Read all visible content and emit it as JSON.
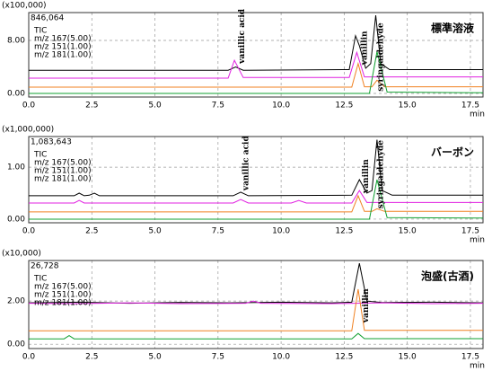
{
  "chart_data": [
    {
      "type": "line",
      "scale_label": "(x100,000)",
      "max_label": "846,064",
      "sample": "標準溶液",
      "x_label": "min",
      "xlim": [
        0,
        18
      ],
      "xticks": [
        {
          "value": 0,
          "label": "0.0"
        },
        {
          "value": 2.5,
          "label": "2.5"
        },
        {
          "value": 5,
          "label": "5.0"
        },
        {
          "value": 7.5,
          "label": "7.5"
        },
        {
          "value": 10,
          "label": "10.0"
        },
        {
          "value": 12.5,
          "label": "12.5"
        },
        {
          "value": 15,
          "label": "15.0"
        },
        {
          "value": 17.5,
          "label": "17.5"
        }
      ],
      "ylim": [
        -0.54,
        12.2
      ],
      "yticks": [
        {
          "value": 0,
          "label": "0.00"
        },
        {
          "value": 8,
          "label": "8.00"
        }
      ],
      "grid": true,
      "series": [
        {
          "name": "TIC",
          "color": "#000000",
          "x": [
            0,
            7.9,
            8.2,
            8.5,
            12.7,
            12.95,
            13.1,
            13.35,
            13.55,
            13.75,
            13.95,
            14.3,
            18
          ],
          "values": [
            3.5,
            3.5,
            4.0,
            3.5,
            3.6,
            8.7,
            7.2,
            3.8,
            4.5,
            11.8,
            4.5,
            3.6,
            3.6
          ]
        },
        {
          "name": "m/z 167(5.00)",
          "color": "#e020e0",
          "x": [
            0,
            7.9,
            8.15,
            8.5,
            12.7,
            13.0,
            13.3,
            18
          ],
          "values": [
            2.3,
            2.3,
            5.0,
            2.4,
            2.4,
            6.2,
            2.5,
            2.5
          ]
        },
        {
          "name": "m/z 151(1.00)",
          "color": "#f08020",
          "x": [
            0,
            12.8,
            13.05,
            13.3,
            13.6,
            13.8,
            14.1,
            18
          ],
          "values": [
            0.95,
            0.95,
            4.5,
            1.0,
            1.0,
            2.0,
            1.0,
            1.0
          ]
        },
        {
          "name": "m/z 181(1.00)",
          "color": "#10a030",
          "x": [
            0,
            13.5,
            13.8,
            14.2,
            18
          ],
          "values": [
            0,
            0,
            6.3,
            0.2,
            0.1
          ]
        }
      ],
      "annotations": [
        {
          "text": "vanillic acid",
          "x": 8.45,
          "y": 4.5
        },
        {
          "text": "vanillin",
          "x": 13.3,
          "y": 4.3
        },
        {
          "text": "syringaldehyde",
          "x": 13.95,
          "y": 0.3
        }
      ]
    },
    {
      "type": "line",
      "scale_label": "(x1,000,000)",
      "max_label": "1,083,643",
      "sample": "バーボン",
      "x_label": "min",
      "xlim": [
        0,
        18
      ],
      "xticks": [
        {
          "value": 0,
          "label": "0.0"
        },
        {
          "value": 2.5,
          "label": "2.5"
        },
        {
          "value": 5,
          "label": "5.0"
        },
        {
          "value": 7.5,
          "label": "7.5"
        },
        {
          "value": 10,
          "label": "10.0"
        },
        {
          "value": 12.5,
          "label": "12.5"
        },
        {
          "value": 15,
          "label": "15.0"
        },
        {
          "value": 17.5,
          "label": "17.5"
        }
      ],
      "ylim": [
        -0.07,
        1.59
      ],
      "yticks": [
        {
          "value": 0,
          "label": "0.00"
        },
        {
          "value": 1,
          "label": "1.00"
        }
      ],
      "grid": true,
      "series": [
        {
          "name": "TIC",
          "color": "#000000",
          "x": [
            0,
            1.8,
            2.0,
            2.2,
            2.4,
            2.6,
            2.8,
            8.1,
            8.4,
            8.7,
            12.8,
            13.1,
            13.4,
            13.6,
            13.8,
            14.0,
            14.4,
            18
          ],
          "values": [
            0.45,
            0.45,
            0.5,
            0.45,
            0.46,
            0.5,
            0.45,
            0.45,
            0.52,
            0.45,
            0.46,
            0.76,
            0.5,
            0.55,
            1.53,
            0.55,
            0.46,
            0.46
          ]
        },
        {
          "name": "m/z 167(5.00)",
          "color": "#e020e0",
          "x": [
            0,
            1.8,
            2.0,
            2.2,
            8.1,
            8.4,
            8.7,
            10.4,
            10.7,
            11.0,
            12.8,
            13.1,
            13.4,
            18
          ],
          "values": [
            0.31,
            0.31,
            0.36,
            0.31,
            0.31,
            0.38,
            0.31,
            0.31,
            0.36,
            0.31,
            0.31,
            0.55,
            0.32,
            0.32
          ]
        },
        {
          "name": "m/z 151(1.00)",
          "color": "#f08020",
          "x": [
            0,
            12.8,
            13.05,
            13.3,
            13.6,
            13.8,
            14.1,
            18
          ],
          "values": [
            0.14,
            0.14,
            0.45,
            0.15,
            0.15,
            0.2,
            0.15,
            0.15
          ]
        },
        {
          "name": "m/z 181(1.00)",
          "color": "#10a030",
          "x": [
            0,
            13.5,
            13.8,
            14.2,
            18
          ],
          "values": [
            0,
            0,
            0.76,
            0.03,
            0.02
          ]
        }
      ],
      "annotations": [
        {
          "text": "vanillic acid",
          "x": 8.6,
          "y": 0.55
        },
        {
          "text": "vanillin",
          "x": 13.35,
          "y": 0.5
        },
        {
          "text": "syringaldehyde",
          "x": 13.95,
          "y": 0.2
        }
      ]
    },
    {
      "type": "line",
      "scale_label": "(x10,000)",
      "max_label": "26,728",
      "sample": "泡盛(古酒)",
      "x_label": "min",
      "xlim": [
        0,
        18
      ],
      "xticks": [
        {
          "value": 0,
          "label": "0.0"
        },
        {
          "value": 2.5,
          "label": "2.5"
        },
        {
          "value": 5,
          "label": "5.0"
        },
        {
          "value": 7.5,
          "label": "7.5"
        },
        {
          "value": 10,
          "label": "10.0"
        },
        {
          "value": 12.5,
          "label": "12.5"
        },
        {
          "value": 15,
          "label": "15.0"
        },
        {
          "value": 17.5,
          "label": "17.5"
        }
      ],
      "ylim": [
        -0.2,
        3.88
      ],
      "yticks": [
        {
          "value": 0,
          "label": "0.00"
        },
        {
          "value": 2,
          "label": "2.00"
        }
      ],
      "grid": true,
      "series": [
        {
          "name": "TIC",
          "color": "#000000",
          "x": [
            0,
            2,
            4,
            6,
            8,
            10,
            12,
            12.8,
            13.1,
            13.4,
            14,
            16,
            18
          ],
          "values": [
            1.92,
            1.95,
            1.9,
            1.94,
            1.92,
            1.95,
            1.92,
            1.95,
            3.75,
            2.0,
            1.93,
            1.95,
            1.92
          ]
        },
        {
          "name": "m/z 167(5.00)",
          "color": "#e020e0",
          "x": [
            0,
            2,
            4,
            6,
            8.6,
            8.9,
            9.2,
            12,
            14,
            16,
            18
          ],
          "values": [
            1.9,
            1.88,
            1.92,
            1.88,
            1.9,
            2.0,
            1.9,
            1.88,
            1.92,
            1.88,
            1.9
          ]
        },
        {
          "name": "m/z 151(1.00)",
          "color": "#f08020",
          "x": [
            0,
            12.8,
            13.05,
            13.3,
            18
          ],
          "values": [
            0.62,
            0.62,
            2.55,
            0.64,
            0.64
          ]
        },
        {
          "name": "m/z 181(1.00)",
          "color": "#10a030",
          "x": [
            0,
            1.4,
            1.6,
            1.8,
            12.8,
            13.05,
            13.3,
            18
          ],
          "values": [
            0.25,
            0.25,
            0.4,
            0.25,
            0.25,
            0.5,
            0.26,
            0.26
          ]
        }
      ],
      "annotations": [
        {
          "text": "vanillin",
          "x": 13.35,
          "y": 1.0
        }
      ]
    }
  ]
}
